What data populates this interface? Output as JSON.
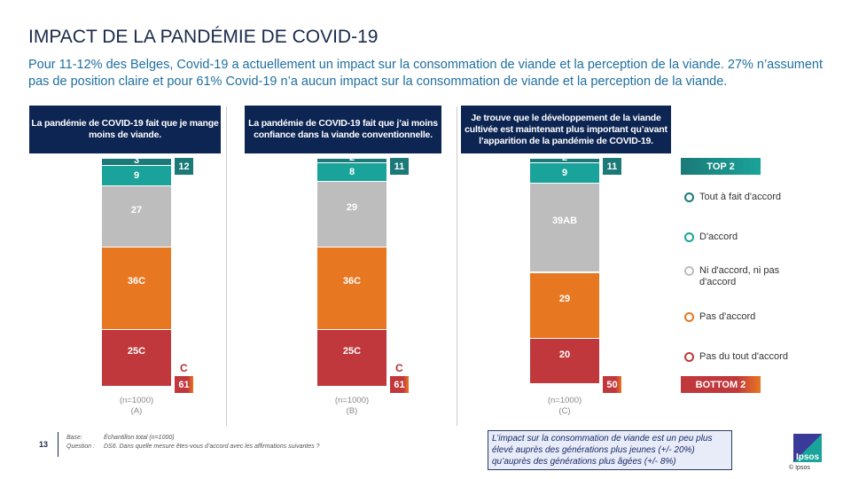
{
  "title": "IMPACT DE LA PANDÉMIE DE COVID-19",
  "subtitle": "Pour 11-12% des Belges, Covid-19 a actuellement un impact sur la consommation de viande et la perception de la viande. 27% n’assument pas de position claire et pour 61% Covid-19 n’a aucun impact sur la consommation de viande et la perception de la viande.",
  "chart_data": {
    "type": "bar",
    "stacked": true,
    "categories": [
      "La pandémie de COVID-19 fait que je mange moins de viande.",
      "La pandémie de COVID-19 fait que j’ai moins confiance dans la viande conventionnelle.",
      "Je trouve que le développement de la viande cultivée est maintenant plus important qu’avant l’apparition de la pandémie de COVID-19."
    ],
    "series": [
      {
        "name": "Tout à fait d'accord",
        "color": "#1b7a78",
        "values": [
          3,
          2,
          2
        ],
        "labels": [
          "3",
          "2",
          "2"
        ]
      },
      {
        "name": "D'accord",
        "color": "#1aa39a",
        "values": [
          9,
          8,
          9
        ],
        "labels": [
          "9",
          "8",
          "9"
        ]
      },
      {
        "name": "Ni d'accord, ni pas d'accord",
        "color": "#bdbdbd",
        "values": [
          27,
          29,
          39
        ],
        "labels": [
          "27",
          "29",
          "39AB"
        ]
      },
      {
        "name": "Pas d'accord",
        "color": "#e87722",
        "values": [
          36,
          36,
          29
        ],
        "labels": [
          "36C",
          "36C",
          "29"
        ]
      },
      {
        "name": "Pas du tout d'accord",
        "color": "#c0383c",
        "values": [
          25,
          25,
          20
        ],
        "labels": [
          "25C",
          "25C",
          "20"
        ]
      }
    ],
    "top2": [
      12,
      11,
      11
    ],
    "bottom2": [
      61,
      61,
      50
    ],
    "bottom2_sig": [
      "C",
      "C",
      ""
    ],
    "bases": [
      "(n=1000)",
      "(n=1000)",
      "(n=1000)"
    ],
    "groups": [
      "(A)",
      "(B)",
      "(C)"
    ],
    "ylim": [
      0,
      100
    ]
  },
  "legend": {
    "top2": "TOP 2",
    "bottom2": "BOTTOM 2"
  },
  "footer": {
    "base_label": "Base:",
    "base": "Échantillon total (n=1000)",
    "question_label": "Question :",
    "question": "DS6. Dans quelle mesure êtes-vous d’accord avec les affirmations suivantes ?",
    "page": "13"
  },
  "note": "L’impact sur la consommation de viande est un peu plus élevé auprès des générations plus jeunes (+/- 20%) qu’auprès des générations plus âgées (+/- 8%)",
  "logo": "Ipsos",
  "copyright": "© Ipsos"
}
